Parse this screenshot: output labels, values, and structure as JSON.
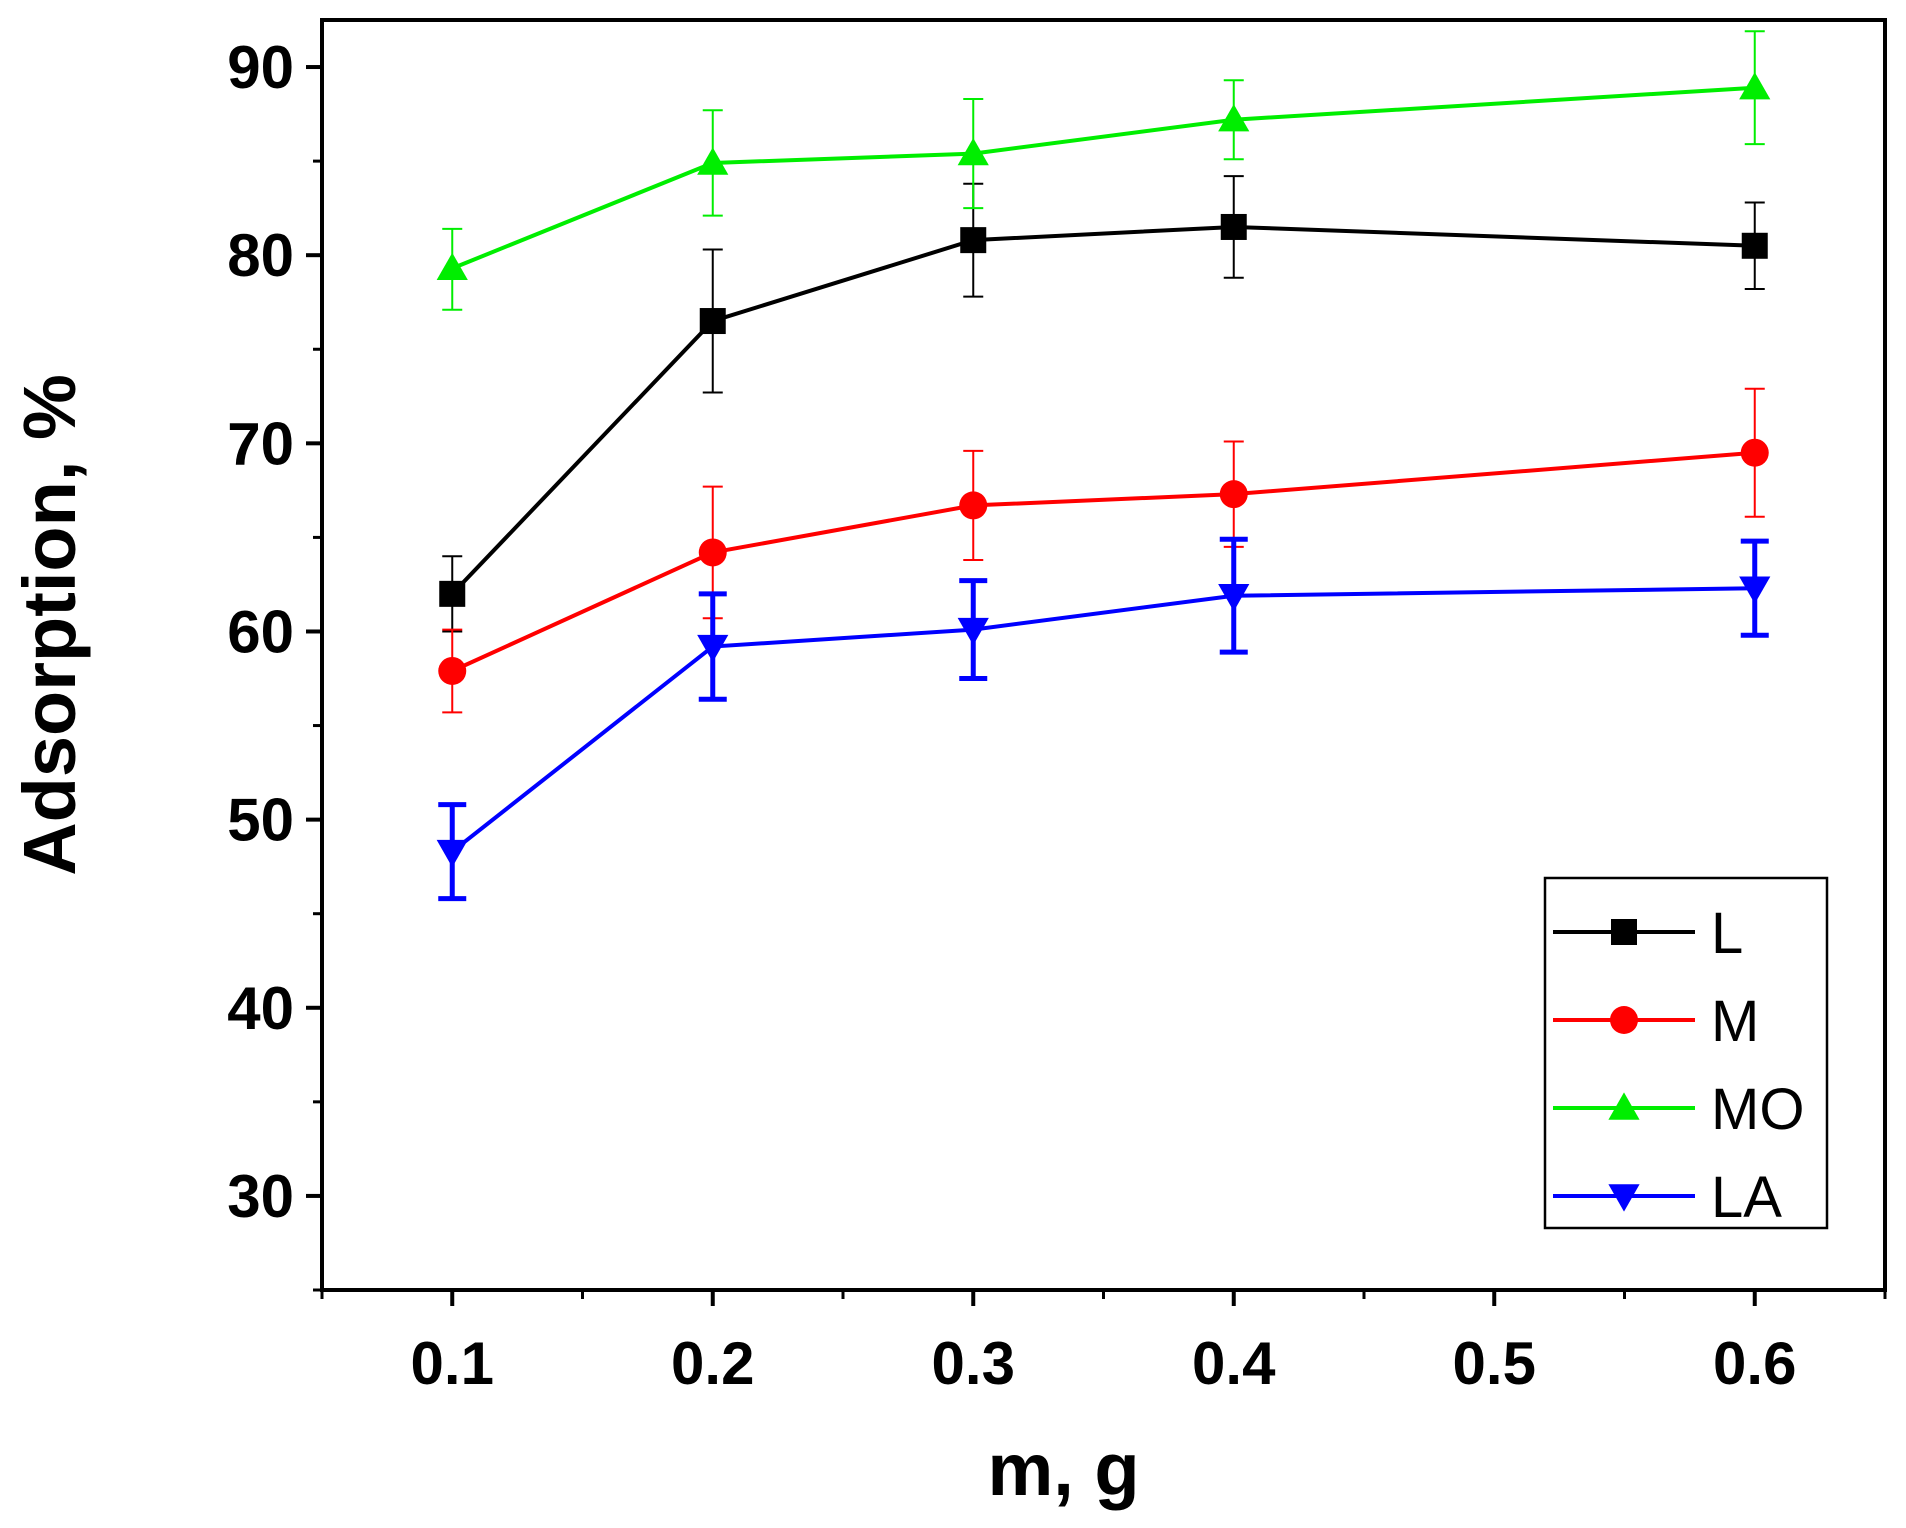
{
  "chart_data": {
    "type": "line",
    "title": "",
    "xlabel": "m, g",
    "ylabel": "Adsorption, %",
    "xlim": [
      0.05,
      0.65
    ],
    "ylim": [
      25,
      92.5
    ],
    "x_ticks": [
      "0.1",
      "0.2",
      "0.3",
      "0.4",
      "0.5",
      "0.6"
    ],
    "y_ticks": [
      "30",
      "40",
      "50",
      "60",
      "70",
      "80",
      "90"
    ],
    "legend_position": "bottom-right",
    "series": [
      {
        "name": "L",
        "color": "#000000",
        "marker": "square",
        "x": [
          0.1,
          0.2,
          0.3,
          0.4,
          0.6
        ],
        "y": [
          62.0,
          76.5,
          80.8,
          81.5,
          80.5
        ],
        "err_plus": [
          2.0,
          3.8,
          3.0,
          2.7,
          2.3
        ],
        "err_minus": [
          2.0,
          3.8,
          3.0,
          2.7,
          2.3
        ]
      },
      {
        "name": "M",
        "color": "#ff0000",
        "marker": "circle",
        "x": [
          0.1,
          0.2,
          0.3,
          0.4,
          0.6
        ],
        "y": [
          57.9,
          64.2,
          66.7,
          67.3,
          69.5
        ],
        "err_plus": [
          2.2,
          3.5,
          2.9,
          2.8,
          3.4
        ],
        "err_minus": [
          2.2,
          3.5,
          2.9,
          2.8,
          3.4
        ]
      },
      {
        "name": "MO",
        "color": "#00ee00",
        "marker": "triangle-up",
        "x": [
          0.1,
          0.2,
          0.3,
          0.4,
          0.6
        ],
        "y": [
          79.3,
          84.9,
          85.4,
          87.2,
          88.9
        ],
        "err_plus": [
          2.1,
          2.8,
          2.9,
          2.1,
          3.0
        ],
        "err_minus": [
          2.2,
          2.8,
          2.9,
          2.1,
          3.0
        ]
      },
      {
        "name": "LA",
        "color": "#0000ff",
        "marker": "triangle-down",
        "x": [
          0.1,
          0.2,
          0.3,
          0.4,
          0.6
        ],
        "y": [
          48.3,
          59.2,
          60.1,
          61.9,
          62.3
        ],
        "err_plus": [
          2.5,
          2.8,
          2.6,
          3.0,
          2.5
        ],
        "err_minus": [
          2.5,
          2.8,
          2.6,
          3.0,
          2.5
        ]
      }
    ]
  }
}
